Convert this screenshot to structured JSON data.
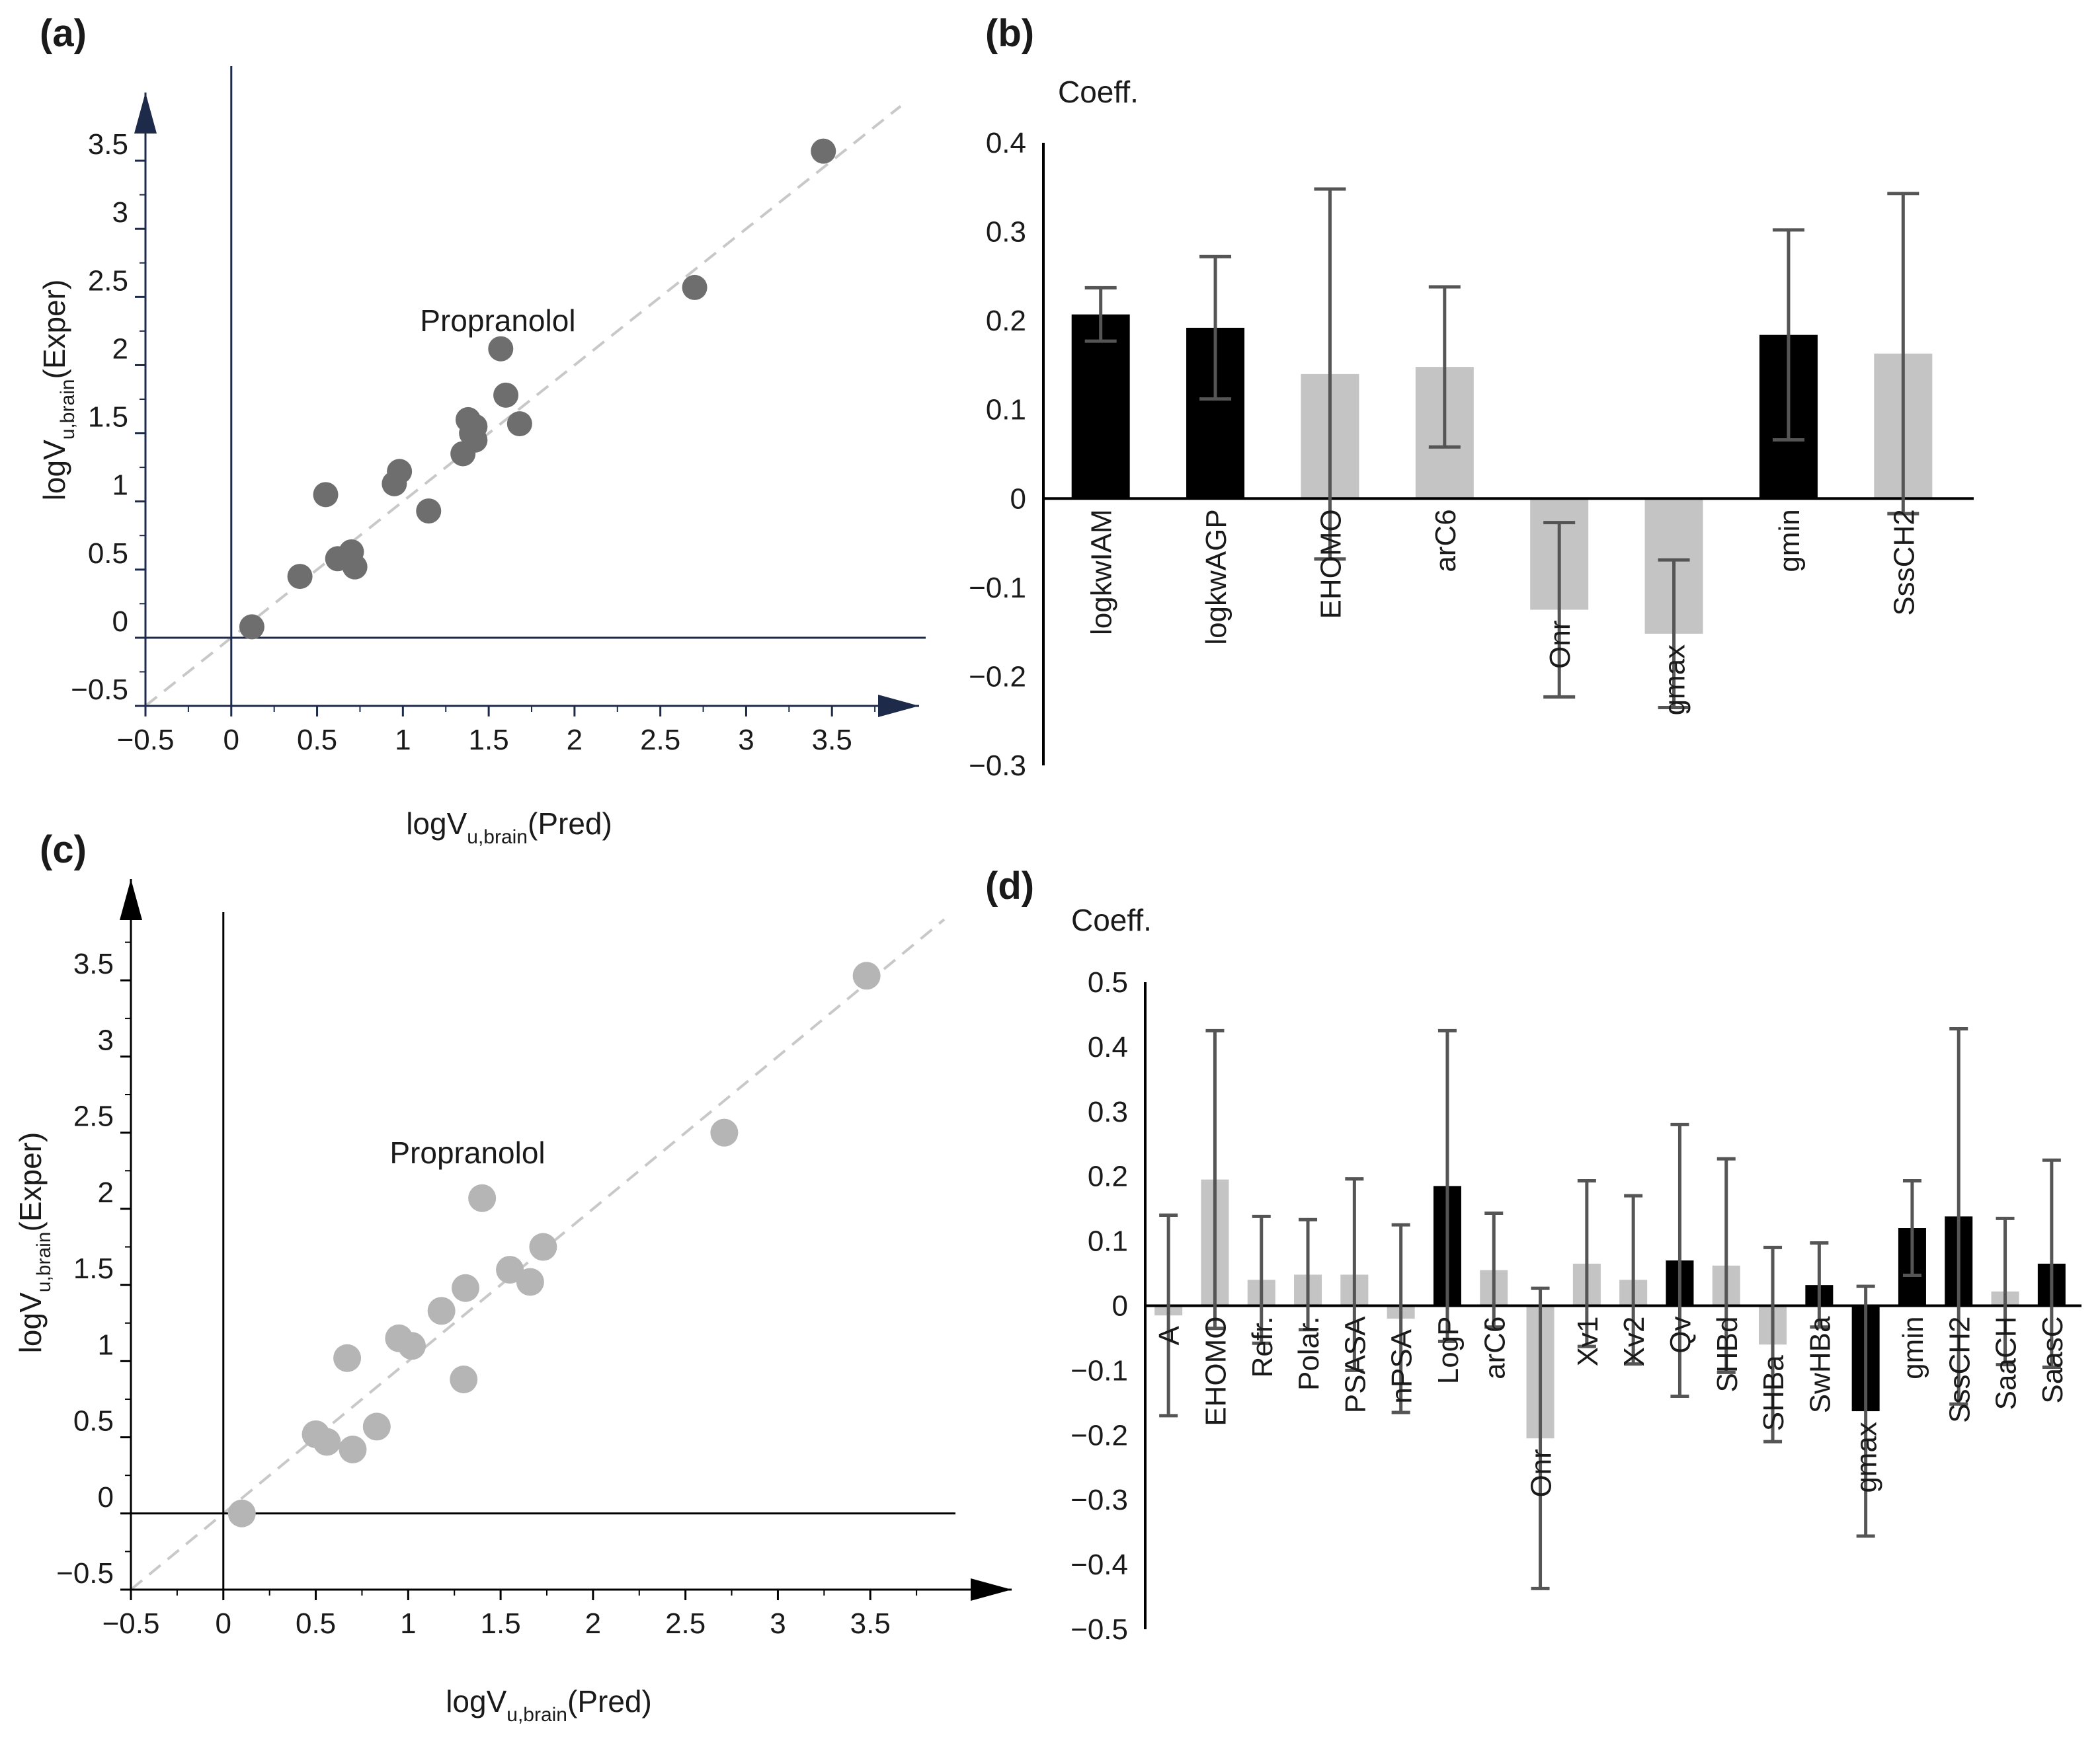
{
  "colors": {
    "axis_a": "#1e2a4a",
    "axis_c": "#000000",
    "point_a": "#6e6e6e",
    "point_c": "#b5b5b5",
    "line": "#c8c8c8",
    "bar_black": "#000000",
    "bar_gray": "#c4c4c4",
    "errbar": "#555555"
  },
  "chart_data": [
    {
      "id": "a",
      "panel_label": "(a)",
      "type": "scatter",
      "xlabel": {
        "main": "logV",
        "sub": "u,brain",
        "tail": "(Pred)"
      },
      "ylabel": {
        "main": "logV",
        "sub": "u,brain",
        "tail": "(Exper)"
      },
      "xlim": [
        -0.5,
        4.0
      ],
      "ylim": [
        -0.5,
        4.0
      ],
      "xticks": [
        "−0.5",
        "0",
        "0.5",
        "1",
        "1.5",
        "2",
        "2.5",
        "3",
        "3.5"
      ],
      "yticks": [
        "−0.5",
        "0",
        "0.5",
        "1",
        "1.5",
        "2",
        "2.5",
        "3",
        "3.5"
      ],
      "annotation": {
        "text": "Propranolol",
        "x": 1.1,
        "y": 2.25
      },
      "identity_line": true,
      "points": [
        {
          "x": 0.12,
          "y": 0.08
        },
        {
          "x": 0.4,
          "y": 0.45
        },
        {
          "x": 0.55,
          "y": 1.05
        },
        {
          "x": 0.62,
          "y": 0.58
        },
        {
          "x": 0.68,
          "y": 0.58
        },
        {
          "x": 0.7,
          "y": 0.63
        },
        {
          "x": 0.72,
          "y": 0.52
        },
        {
          "x": 0.95,
          "y": 1.13
        },
        {
          "x": 0.98,
          "y": 1.22
        },
        {
          "x": 1.15,
          "y": 0.93
        },
        {
          "x": 1.35,
          "y": 1.35
        },
        {
          "x": 1.38,
          "y": 1.6
        },
        {
          "x": 1.4,
          "y": 1.5
        },
        {
          "x": 1.42,
          "y": 1.45
        },
        {
          "x": 1.42,
          "y": 1.55
        },
        {
          "x": 1.57,
          "y": 2.12
        },
        {
          "x": 1.6,
          "y": 1.78
        },
        {
          "x": 1.68,
          "y": 1.57
        },
        {
          "x": 2.7,
          "y": 2.57
        },
        {
          "x": 3.45,
          "y": 3.57
        }
      ]
    },
    {
      "id": "b",
      "panel_label": "(b)",
      "type": "bar",
      "ytitle": "Coeff.",
      "ylim": [
        -0.3,
        0.4
      ],
      "yticks": [
        "0.4",
        "0.3",
        "0.2",
        "0.1",
        "0",
        "−0.1",
        "−0.2",
        "−0.3"
      ],
      "categories": [
        "logkwIAM",
        "logkwAGP",
        "EHOMO",
        "arC6",
        "Onr",
        "gmax",
        "gmin",
        "SssCH2"
      ],
      "values": [
        0.207,
        0.192,
        0.14,
        0.148,
        -0.125,
        -0.152,
        0.184,
        0.163
      ],
      "errors": [
        0.03,
        0.08,
        0.208,
        0.09,
        0.098,
        0.083,
        0.118,
        0.18
      ],
      "highlight": [
        true,
        true,
        false,
        false,
        false,
        false,
        true,
        false
      ]
    },
    {
      "id": "c",
      "panel_label": "(c)",
      "type": "scatter",
      "xlabel": {
        "main": "logV",
        "sub": "u,brain",
        "tail": "(Pred)"
      },
      "ylabel": {
        "main": "logV",
        "sub": "u,brain",
        "tail": "(Exper)"
      },
      "xlim": [
        -0.5,
        4.0
      ],
      "ylim": [
        -0.5,
        4.0
      ],
      "xticks": [
        "−0.5",
        "0",
        "0.5",
        "1",
        "1.5",
        "2",
        "2.5",
        "3",
        "3.5"
      ],
      "yticks": [
        "−0.5",
        "0",
        "0.5",
        "1",
        "1.5",
        "2",
        "2.5",
        "3",
        "3.5"
      ],
      "annotation": {
        "text": "Propranolol",
        "x": 0.9,
        "y": 2.3
      },
      "identity_line": true,
      "points": [
        {
          "x": 0.1,
          "y": 0.0
        },
        {
          "x": 0.5,
          "y": 0.52
        },
        {
          "x": 0.56,
          "y": 0.47
        },
        {
          "x": 0.67,
          "y": 1.02
        },
        {
          "x": 0.7,
          "y": 0.42
        },
        {
          "x": 0.83,
          "y": 0.57
        },
        {
          "x": 0.95,
          "y": 1.15
        },
        {
          "x": 1.02,
          "y": 1.1
        },
        {
          "x": 1.18,
          "y": 1.33
        },
        {
          "x": 1.3,
          "y": 0.88
        },
        {
          "x": 1.31,
          "y": 1.48
        },
        {
          "x": 1.4,
          "y": 2.07
        },
        {
          "x": 1.55,
          "y": 1.6
        },
        {
          "x": 1.66,
          "y": 1.52
        },
        {
          "x": 1.73,
          "y": 1.75
        },
        {
          "x": 2.71,
          "y": 2.5
        },
        {
          "x": 3.48,
          "y": 3.53
        }
      ]
    },
    {
      "id": "d",
      "panel_label": "(d)",
      "type": "bar",
      "ytitle": "Coeff.",
      "ylim": [
        -0.5,
        0.5
      ],
      "yticks": [
        "0.5",
        "0.4",
        "0.3",
        "0.2",
        "0.1",
        "0",
        "−0.1",
        "−0.2",
        "−0.3",
        "−0.4",
        "−0.5"
      ],
      "categories": [
        "A",
        "EHOMO",
        "Refr.",
        "Polar.",
        "PSASA",
        "nPSA",
        "LogP",
        "arC6",
        "Onr",
        "Xv1",
        "Xv2",
        "Qv",
        "SHBd",
        "SHBa",
        "SwHBa",
        "gmax",
        "gmin",
        "SssCH2",
        "SaaCH",
        "SaasC"
      ],
      "values": [
        -0.015,
        0.195,
        0.04,
        0.048,
        0.048,
        -0.02,
        0.185,
        0.055,
        -0.205,
        0.065,
        0.04,
        0.07,
        0.062,
        -0.06,
        0.032,
        -0.163,
        0.12,
        0.138,
        0.022,
        0.065
      ],
      "errors": [
        0.155,
        0.23,
        0.098,
        0.085,
        0.148,
        0.145,
        0.24,
        0.088,
        0.232,
        0.128,
        0.13,
        0.21,
        0.165,
        0.15,
        0.065,
        0.193,
        0.073,
        0.29,
        0.113,
        0.16
      ],
      "highlight": [
        false,
        false,
        false,
        false,
        false,
        false,
        true,
        false,
        false,
        false,
        false,
        true,
        false,
        false,
        true,
        true,
        true,
        true,
        false,
        true
      ]
    }
  ]
}
